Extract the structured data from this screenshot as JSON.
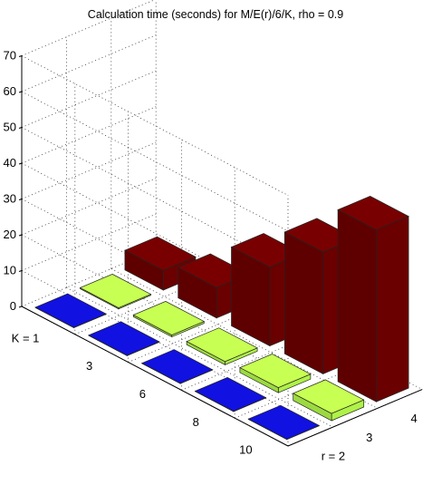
{
  "chart_data": {
    "type": "bar3d",
    "title": "Calculation time (seconds) for M/E(r)/6/K, rho = 0.9",
    "zlim": [
      0,
      70
    ],
    "z_ticks": [
      0,
      10,
      20,
      30,
      40,
      50,
      60,
      70
    ],
    "grid": "on",
    "k_labels": [
      "K = 1",
      "3",
      "6",
      "8",
      "10"
    ],
    "r_labels": [
      "r = 2",
      "3",
      "4"
    ],
    "series": [
      {
        "values": [
          0.1,
          0.1,
          0.1,
          0.1,
          0.1
        ]
      },
      {
        "values": [
          0.3,
          0.5,
          0.9,
          1.4,
          2.0
        ]
      },
      {
        "values": [
          5.5,
          8.5,
          22.0,
          34.0,
          48.0
        ]
      }
    ],
    "colors": {
      "r2": "#1010d0",
      "r3": "#b8ff4c",
      "r4": "#700000"
    }
  }
}
